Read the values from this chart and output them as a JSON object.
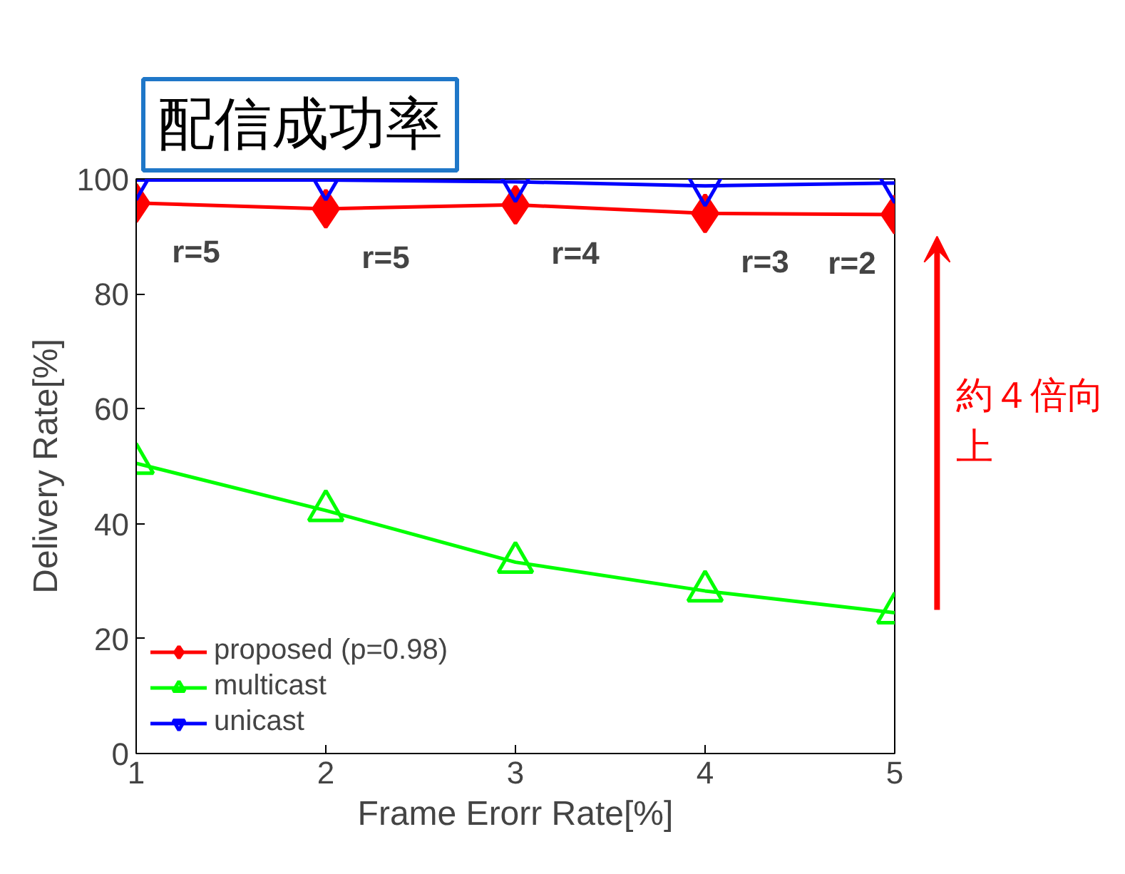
{
  "chart_data": {
    "type": "line",
    "title": "配信成功率",
    "xlabel": "Frame Erorr Rate[%]",
    "ylabel": "Delivery Rate[%]",
    "x": [
      1,
      2,
      3,
      4,
      5
    ],
    "xlim": [
      1,
      5
    ],
    "xticks": [
      1,
      2,
      3,
      4,
      5
    ],
    "ylim": [
      0,
      100
    ],
    "yticks": [
      0,
      20,
      40,
      60,
      80,
      100
    ],
    "series": [
      {
        "name": "proposed (p=0.98)",
        "color": "#ff0000",
        "marker": "diamond",
        "values": [
          95.8,
          94.8,
          95.5,
          94.0,
          93.8
        ]
      },
      {
        "name": "multicast",
        "color": "#00ff00",
        "marker": "triangle",
        "values": [
          50.5,
          42.3,
          33.3,
          28.3,
          24.5
        ]
      },
      {
        "name": "unicast",
        "color": "#0000ff",
        "marker": "triangle",
        "values": [
          99.8,
          99.8,
          99.5,
          98.8,
          99.3
        ]
      }
    ],
    "annotations": [
      "r=5",
      "r=5",
      "r=4",
      "r=3",
      "r=2",
      "約４倍向上"
    ],
    "legend": "bottom left",
    "grid": false
  }
}
